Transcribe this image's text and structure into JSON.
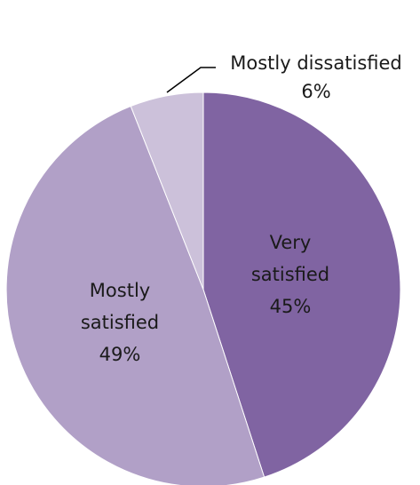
{
  "chart_data": {
    "type": "pie",
    "title": "",
    "slices": [
      {
        "label_line1": "Very",
        "label_line2": "satisfied",
        "value": 45,
        "value_label": "45%",
        "color": "#8064a2"
      },
      {
        "label_line1": "Mostly",
        "label_line2": "satisfied",
        "value": 49,
        "value_label": "49%",
        "color": "#b1a0c7"
      },
      {
        "label_line1": "Mostly dissatisfied",
        "label_line2": "",
        "value": 6,
        "value_label": "6%",
        "color": "#ccc1da"
      }
    ],
    "start_angle": "12 o'clock",
    "direction": "clockwise",
    "legend": "none"
  }
}
